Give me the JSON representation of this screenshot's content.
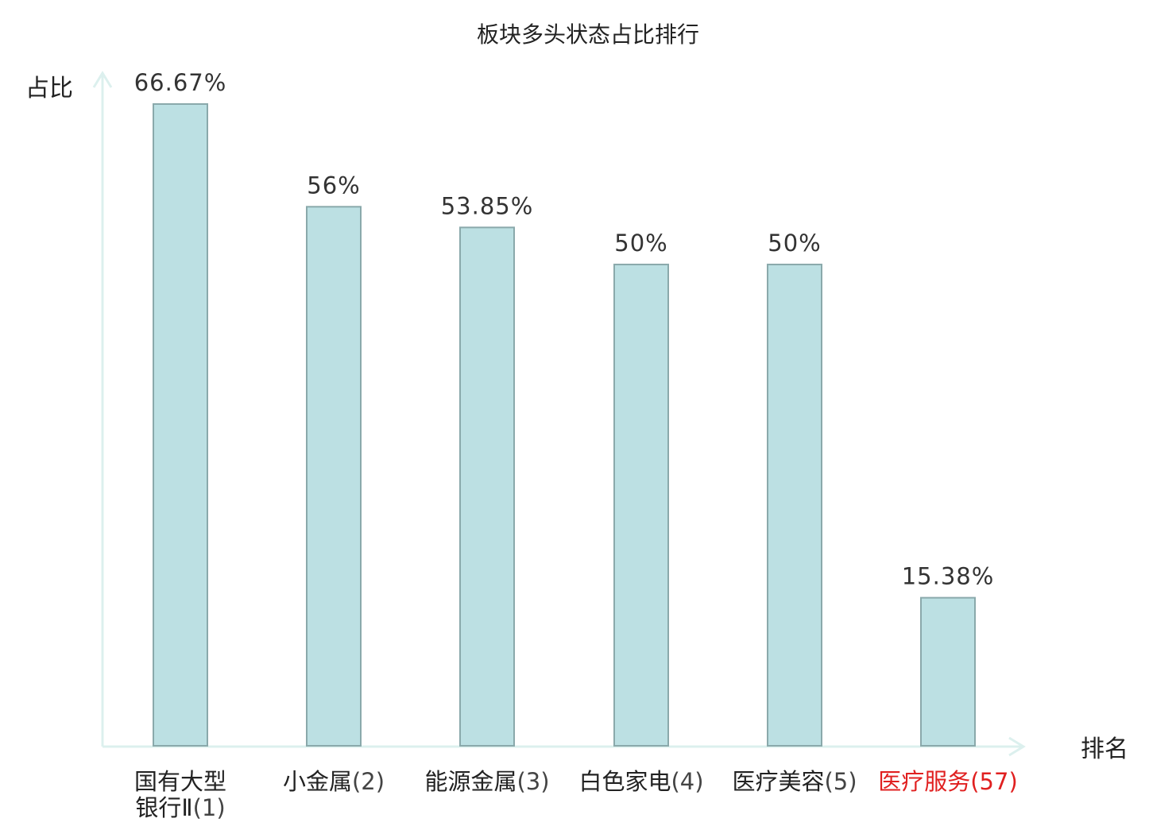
{
  "chart_data": {
    "type": "bar",
    "title": "板块多头状态占比排行",
    "xlabel": "排名",
    "ylabel": "占比",
    "ylim": [
      0,
      70
    ],
    "grid": false,
    "legend": "none",
    "categories": [
      {
        "name_lines": [
          "国有大型",
          "银行Ⅱ"
        ],
        "rank": "(1)",
        "highlight": false
      },
      {
        "name_lines": [
          "小金属"
        ],
        "rank": "(2)",
        "highlight": false
      },
      {
        "name_lines": [
          "能源金属"
        ],
        "rank": "(3)",
        "highlight": false
      },
      {
        "name_lines": [
          "白色家电"
        ],
        "rank": "(4)",
        "highlight": false
      },
      {
        "name_lines": [
          "医疗美容"
        ],
        "rank": "(5)",
        "highlight": false
      },
      {
        "name_lines": [
          "医疗服务"
        ],
        "rank": "(57)",
        "highlight": true
      }
    ],
    "values": [
      66.67,
      56,
      53.85,
      50,
      50,
      15.38
    ],
    "value_labels": [
      "66.67%",
      "56%",
      "53.85%",
      "50%",
      "50%",
      "15.38%"
    ],
    "colors": {
      "bar_fill": "#bce0e3",
      "bar_stroke": "#8aa9ab",
      "axis": "#dcf0ee",
      "highlight": "#e02020",
      "label": "#222222"
    }
  }
}
